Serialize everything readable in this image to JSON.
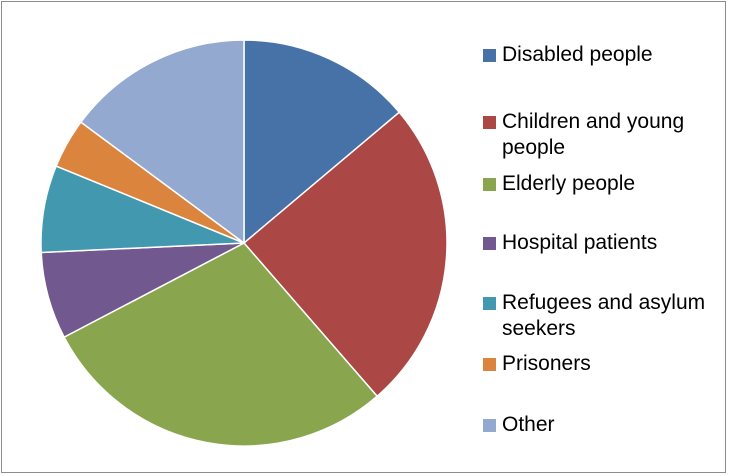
{
  "chart_data": {
    "type": "pie",
    "title": "",
    "categories": [
      "Disabled people",
      "Children and young people",
      "Elderly people",
      "Hospital patients",
      "Refugees and asylum seekers",
      "Prisoners",
      "Other"
    ],
    "values": [
      14,
      25,
      29,
      7,
      7,
      4,
      15
    ],
    "colors": [
      "#4672A8",
      "#AB4744",
      "#89A54E",
      "#71588F",
      "#4298AF",
      "#DB843D",
      "#93A9CF"
    ],
    "start_angle_deg": 0,
    "direction": "clockwise",
    "legend_position": "right"
  }
}
